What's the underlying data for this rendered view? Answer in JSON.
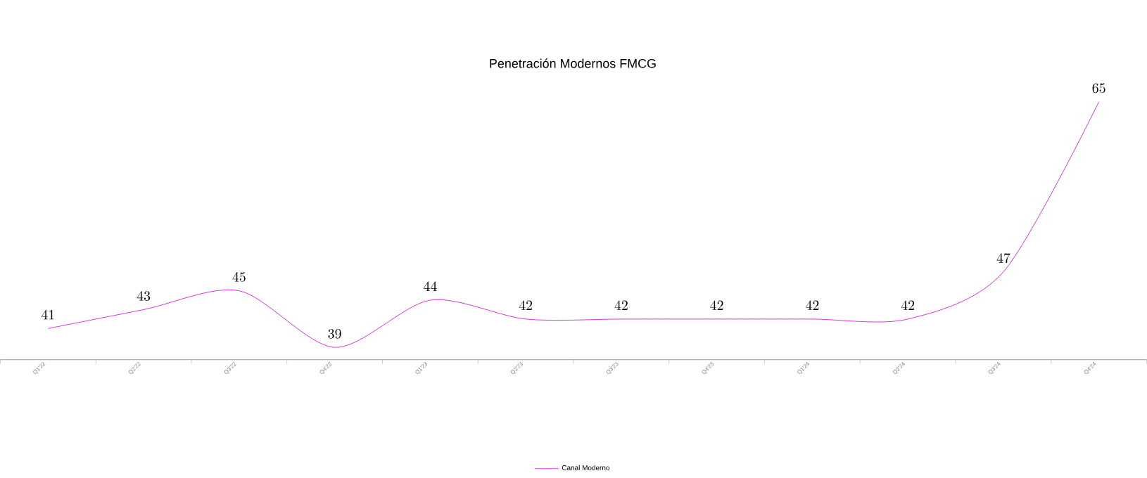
{
  "chart_data": {
    "type": "line",
    "title": "Penetración Modernos FMCG",
    "categories": [
      "Q1'22",
      "Q2'22",
      "Q3'22",
      "Q4'22",
      "Q1'23",
      "Q2'23",
      "Q3'23",
      "Q4'23",
      "Q1'24",
      "Q2'24",
      "Q3'24",
      "Q4'24"
    ],
    "series": [
      {
        "name": "Canal Moderno",
        "color": "#cc00cc",
        "values": [
          41,
          43,
          45,
          39,
          44,
          42,
          42,
          42,
          42,
          42,
          47,
          65
        ]
      }
    ],
    "data_labels": true,
    "legend": "bottom",
    "marker": "none",
    "line_style": "solid",
    "grid": false,
    "tick_labels": "x"
  }
}
